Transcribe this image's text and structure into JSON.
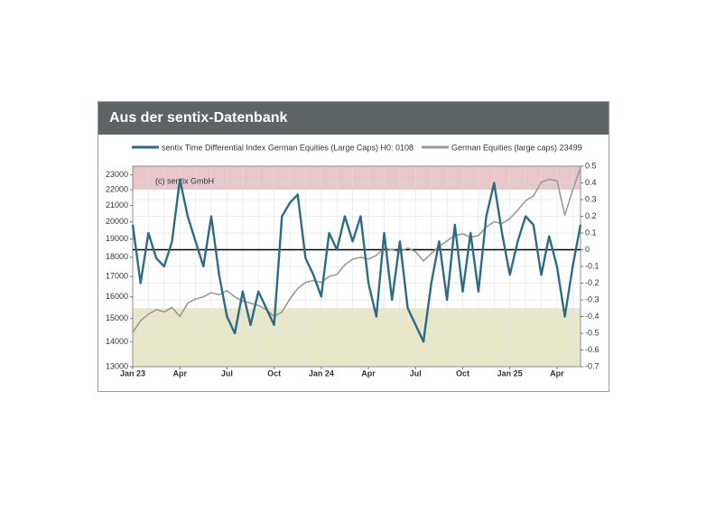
{
  "header": {
    "title": "Aus der sentix-Datenbank"
  },
  "chart_data": {
    "type": "line",
    "watermark": "(c) sentix GmbH",
    "categories": [
      "Jan 23",
      null,
      null,
      null,
      null,
      null,
      "Apr",
      null,
      null,
      null,
      null,
      null,
      "Jul",
      null,
      null,
      null,
      null,
      null,
      "Oct",
      null,
      null,
      null,
      null,
      null,
      "Jan 24",
      null,
      null,
      null,
      null,
      null,
      "Apr",
      null,
      null,
      null,
      null,
      null,
      "Jul",
      null,
      null,
      null,
      null,
      null,
      "Oct",
      null,
      null,
      null,
      null,
      null,
      "Jan 25",
      null,
      null,
      null,
      null,
      null,
      "Apr",
      null,
      null,
      null
    ],
    "series": [
      {
        "name": "sentix Time Differential Index German Equities (Large Caps) H0: 0108",
        "color": "#2e6b84",
        "axis": "y2",
        "values": [
          0.15,
          -0.2,
          0.1,
          -0.05,
          -0.1,
          0.05,
          0.42,
          0.2,
          0.05,
          -0.1,
          0.2,
          -0.15,
          -0.4,
          -0.5,
          -0.25,
          -0.45,
          -0.25,
          -0.35,
          -0.45,
          0.2,
          0.28,
          0.33,
          -0.05,
          -0.15,
          -0.28,
          0.1,
          0,
          0.2,
          0.05,
          0.2,
          -0.2,
          -0.4,
          0.1,
          -0.3,
          0.05,
          -0.35,
          -0.45,
          -0.55,
          -0.2,
          0.05,
          -0.3,
          0.15,
          -0.25,
          0.1,
          -0.25,
          0.2,
          0.4,
          0.1,
          -0.15,
          0.05,
          0.2,
          0.15,
          -0.15,
          0.08,
          -0.1,
          -0.4,
          -0.1,
          0.15
        ]
      },
      {
        "name": "German Equities (large caps) 23499",
        "color": "#9a9a9a",
        "values": [
          14400,
          14900,
          15200,
          15400,
          15300,
          15500,
          15100,
          15700,
          15900,
          16000,
          16200,
          16100,
          16300,
          16000,
          15800,
          15700,
          15600,
          15400,
          15100,
          15300,
          15900,
          16400,
          16700,
          16800,
          16700,
          17000,
          17100,
          17600,
          17900,
          18000,
          17900,
          18100,
          18500,
          18400,
          18300,
          18500,
          18300,
          17800,
          18200,
          18600,
          18900,
          19200,
          19300,
          19100,
          19200,
          19700,
          20000,
          19900,
          20200,
          20700,
          21300,
          21600,
          22500,
          22700,
          22600,
          20400,
          22000,
          23500
        ]
      }
    ],
    "ylim": [
      13000,
      23600
    ],
    "log_y": true,
    "yticks": [
      13000,
      14000,
      15000,
      16000,
      17000,
      18000,
      19000,
      20000,
      21000,
      22000,
      23000
    ],
    "y2lim": [
      -0.7,
      0.5
    ],
    "y2ticks": [
      0.5,
      0.4,
      0.3,
      0.2,
      0.1,
      0,
      -0.1,
      -0.2,
      -0.3,
      -0.4,
      -0.5,
      -0.6,
      -0.7
    ],
    "bands": [
      {
        "from": 0.36,
        "to": 0.5,
        "color": "#e8c6ca"
      },
      {
        "from": -0.7,
        "to": -0.35,
        "color": "#e8e7c9"
      }
    ],
    "zero_line": true,
    "grid": true
  }
}
